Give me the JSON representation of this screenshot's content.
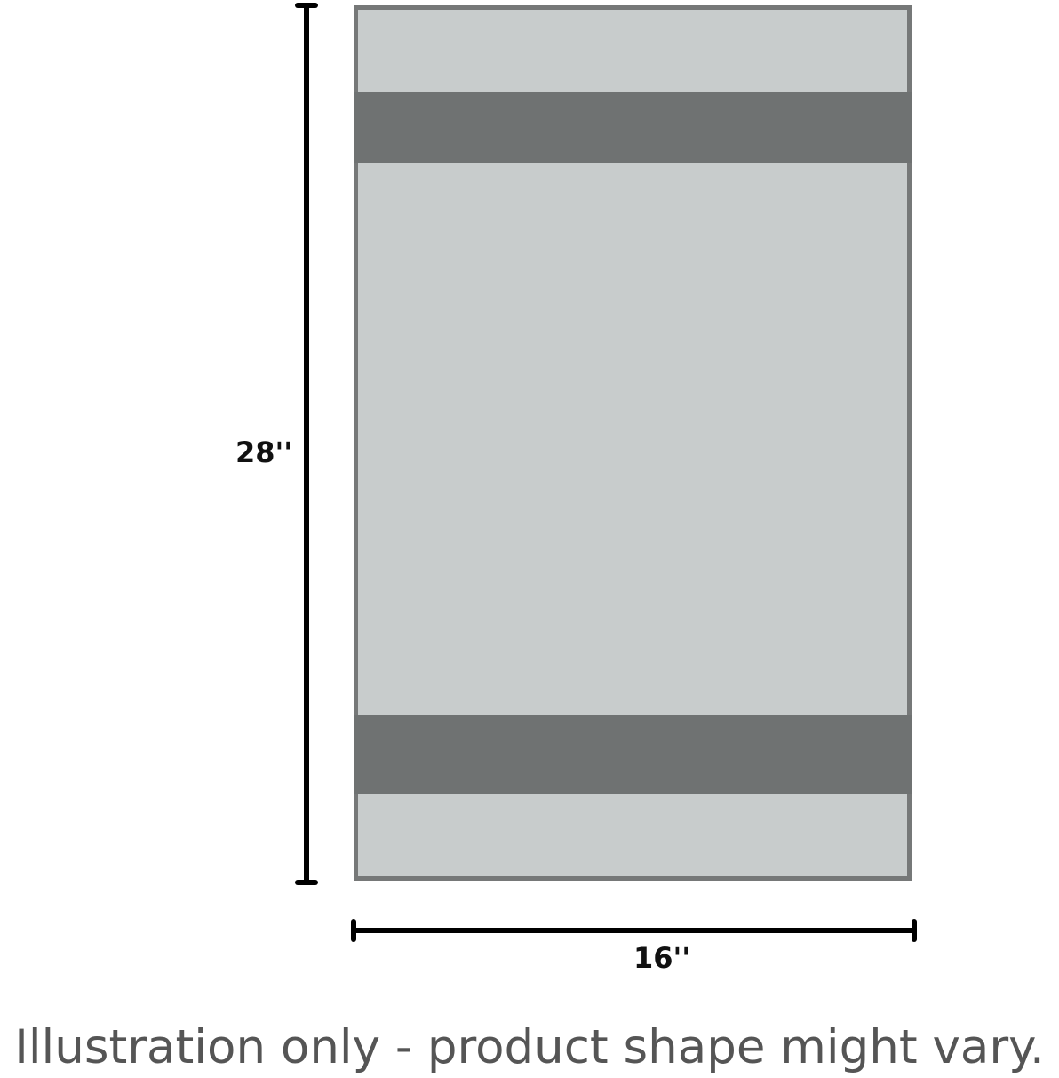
{
  "dimensions": {
    "height_label": "28''",
    "width_label": "16''"
  },
  "caption": "Illustration only - product shape might vary.",
  "colors": {
    "fill": "#c8cccc",
    "band": "#6f7272",
    "border": "#767878",
    "dimension_line": "#000000"
  }
}
